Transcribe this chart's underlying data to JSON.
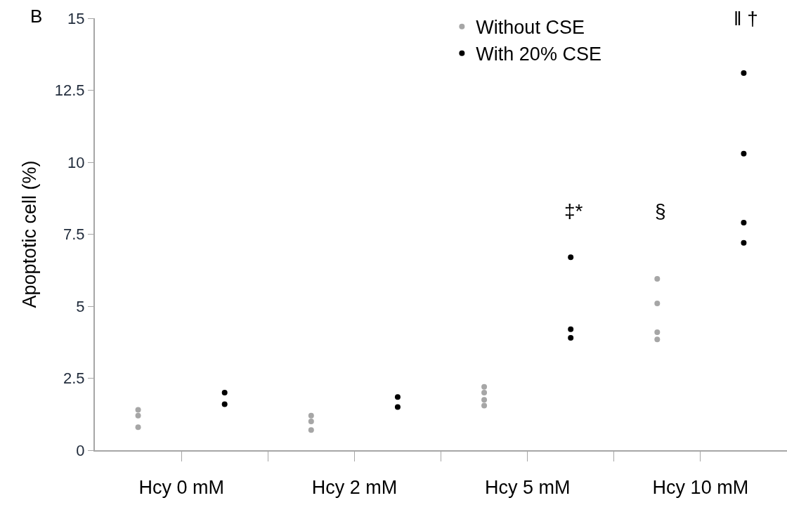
{
  "chart_data": {
    "type": "scatter",
    "ylabel": "Apoptotic cell (%)",
    "categories": [
      "Hcy 0 mM",
      "Hcy 2 mM",
      "Hcy 5 mM",
      "Hcy 10 mM"
    ],
    "series": [
      {
        "name": "Without CSE",
        "color": "#a6a6a6",
        "x": [
          "Hcy 0 mM",
          "Hcy 0 mM",
          "Hcy 0 mM",
          "Hcy 2 mM",
          "Hcy 2 mM",
          "Hcy 2 mM",
          "Hcy 5 mM",
          "Hcy 5 mM",
          "Hcy 5 mM",
          "Hcy 5 mM",
          "Hcy 10 mM",
          "Hcy 10 mM",
          "Hcy 10 mM",
          "Hcy 10 mM"
        ],
        "values": [
          1.4,
          1.2,
          0.8,
          1.2,
          1.0,
          0.7,
          2.2,
          2.0,
          1.75,
          1.55,
          5.95,
          5.1,
          4.1,
          3.85
        ]
      },
      {
        "name": "With 20% CSE",
        "color": "#000000",
        "x": [
          "Hcy 0 mM",
          "Hcy 0 mM",
          "Hcy 2 mM",
          "Hcy 2 mM",
          "Hcy 5 mM",
          "Hcy 5 mM",
          "Hcy 5 mM",
          "Hcy 10 mM",
          "Hcy 10 mM",
          "Hcy 10 mM",
          "Hcy 10 mM"
        ],
        "values": [
          2.0,
          1.6,
          1.85,
          1.5,
          6.7,
          4.2,
          3.9,
          13.1,
          10.3,
          7.9,
          7.2
        ]
      }
    ],
    "ylim": [
      0,
      15
    ],
    "yticks": [
      0,
      2.5,
      5,
      7.5,
      10,
      12.5,
      15
    ],
    "marker": "circle",
    "grid": false,
    "legend": "top right",
    "annotations": [
      "B",
      "‡*",
      "§",
      "‖ †"
    ]
  }
}
